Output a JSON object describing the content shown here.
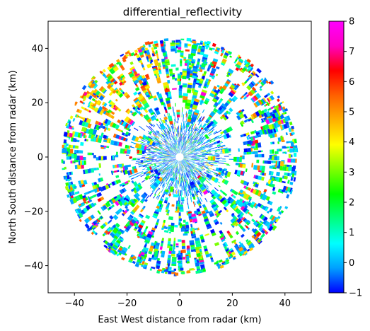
{
  "chart_data": {
    "type": "scatter",
    "title": "differential_reflectivity",
    "xlabel": "East West distance from radar (km)",
    "ylabel": "North South distance from radar (km)",
    "xlim": [
      -50,
      50
    ],
    "ylim": [
      -50,
      50
    ],
    "xticks": [
      -40,
      -20,
      0,
      20,
      40
    ],
    "yticks": [
      -40,
      -20,
      0,
      20,
      40
    ],
    "xtick_labels": [
      "−40",
      "−20",
      "0",
      "20",
      "40"
    ],
    "ytick_labels": [
      "−40",
      "−20",
      "0",
      "20",
      "40"
    ],
    "grid": false,
    "max_range_km": 45,
    "center_blank_radius_km": 1.5,
    "colorbar": {
      "min": -1,
      "max": 8,
      "ticks": [
        -1,
        0,
        1,
        2,
        3,
        4,
        5,
        6,
        7,
        8
      ],
      "tick_labels": [
        "−1",
        "0",
        "1",
        "2",
        "3",
        "4",
        "5",
        "6",
        "7",
        "8"
      ],
      "colormap": [
        "#0000ff",
        "#00a0ff",
        "#00ffff",
        "#00ff80",
        "#00ff00",
        "#80ff00",
        "#ffff00",
        "#ffb000",
        "#ff6000",
        "#ff0000",
        "#ff00c0",
        "#ff00ff"
      ]
    }
  }
}
